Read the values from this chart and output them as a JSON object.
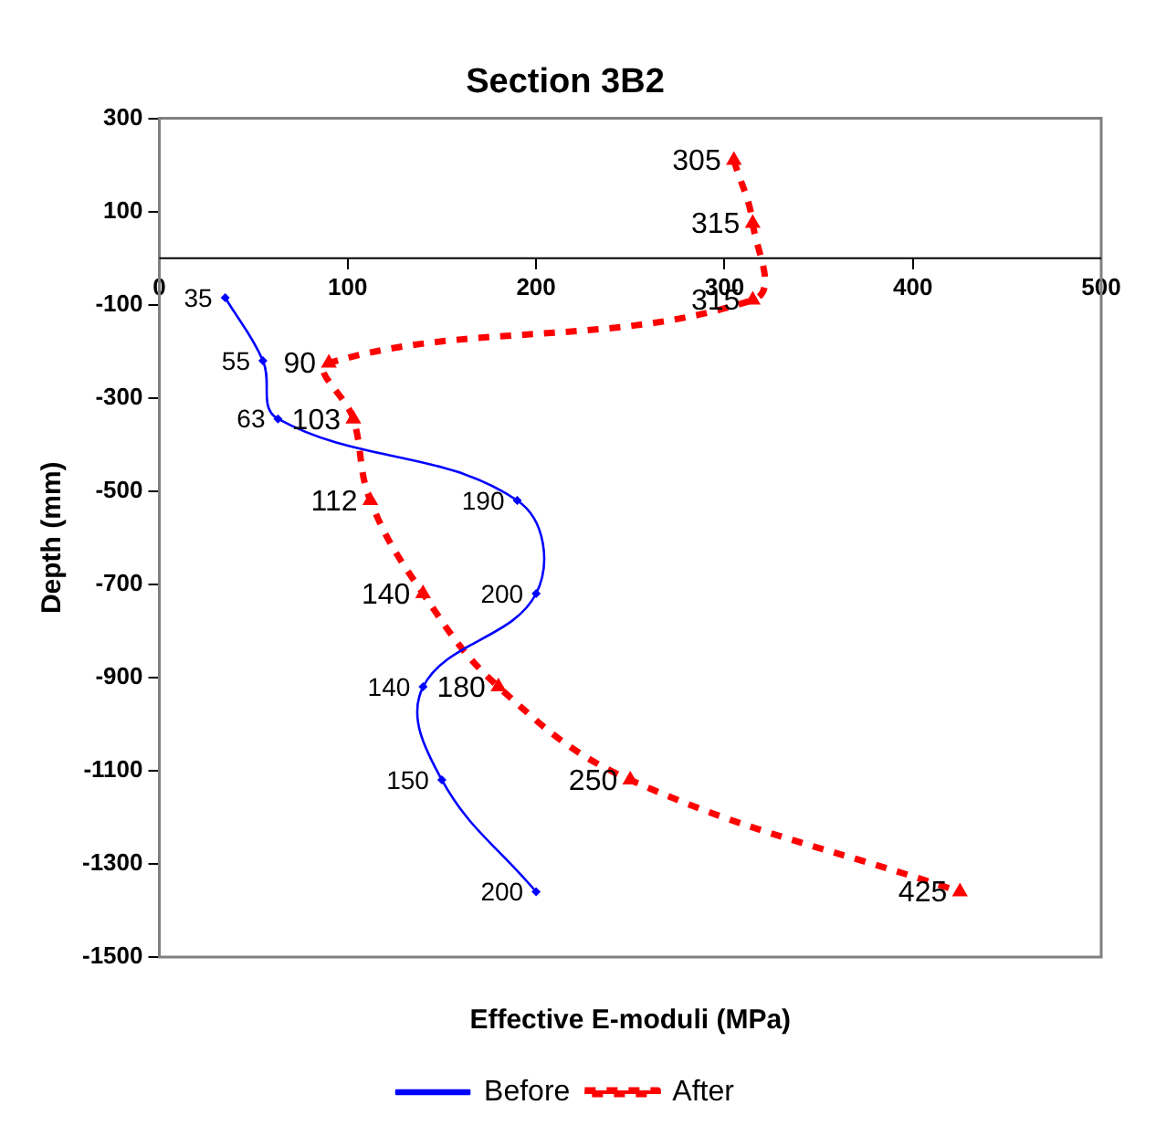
{
  "chart_data": {
    "type": "line",
    "orientation": "horizontal",
    "title": "Section 3B2",
    "xlabel": "Effective E-moduli (MPa)",
    "ylabel": "Depth (mm)",
    "xlim": [
      0,
      500
    ],
    "xticks": [
      0,
      100,
      200,
      300,
      400,
      500
    ],
    "ylim": [
      -1500,
      300
    ],
    "yticks": [
      300,
      100,
      -100,
      -300,
      -500,
      -700,
      -900,
      -1100,
      -1300,
      -1500
    ],
    "grid": false,
    "legend": "bottom",
    "data_labels": true,
    "series": [
      {
        "name": "Before",
        "color": "#0000ff",
        "marker": "diamond",
        "line_style": "solid",
        "x": [
          -85,
          -220,
          -345,
          -520,
          -720,
          -920,
          -1120,
          -1360
        ],
        "values": [
          35,
          55,
          63,
          190,
          200,
          140,
          150,
          200
        ]
      },
      {
        "name": "After",
        "color": "#ff0000",
        "marker": "triangle",
        "line_style": "dashed",
        "x": [
          210,
          75,
          -90,
          -225,
          -345,
          -520,
          -720,
          -920,
          -1120,
          -1360
        ],
        "values": [
          305,
          315,
          315,
          90,
          103,
          112,
          140,
          180,
          250,
          425
        ]
      }
    ]
  }
}
